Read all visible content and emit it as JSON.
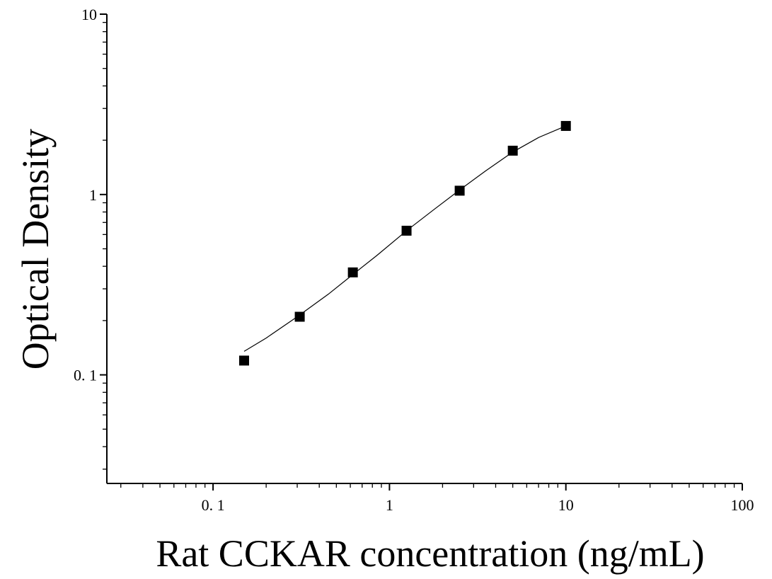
{
  "chart_data": {
    "type": "scatter",
    "title": "",
    "xlabel": "Rat CCKAR concentration (ng/mL)",
    "ylabel": "Optical Density",
    "x_scale": "log",
    "y_scale": "log",
    "xlim": [
      0.025,
      100
    ],
    "ylim": [
      0.025,
      10
    ],
    "x_ticks": [
      0.1,
      1,
      10,
      100
    ],
    "x_tick_labels": [
      "0. 1",
      "1",
      "10",
      "100"
    ],
    "y_ticks": [
      0.1,
      1,
      10
    ],
    "y_tick_labels": [
      "0. 1",
      "1",
      "10"
    ],
    "grid": false,
    "legend": "none",
    "series": [
      {
        "marker": "square",
        "x": [
          0.15,
          0.31,
          0.62,
          1.25,
          2.5,
          5,
          10
        ],
        "y": [
          0.12,
          0.21,
          0.37,
          0.63,
          1.05,
          1.75,
          2.4
        ]
      }
    ],
    "fit_curve": {
      "style": "line",
      "x": [
        0.15,
        0.2,
        0.3,
        0.45,
        0.62,
        0.85,
        1.25,
        1.8,
        2.5,
        3.5,
        5,
        7,
        10
      ],
      "y": [
        0.135,
        0.16,
        0.21,
        0.28,
        0.36,
        0.46,
        0.63,
        0.83,
        1.06,
        1.35,
        1.72,
        2.07,
        2.4
      ]
    },
    "colors": {
      "marker": "#000000",
      "curve": "#000000",
      "axis": "#000000"
    }
  }
}
